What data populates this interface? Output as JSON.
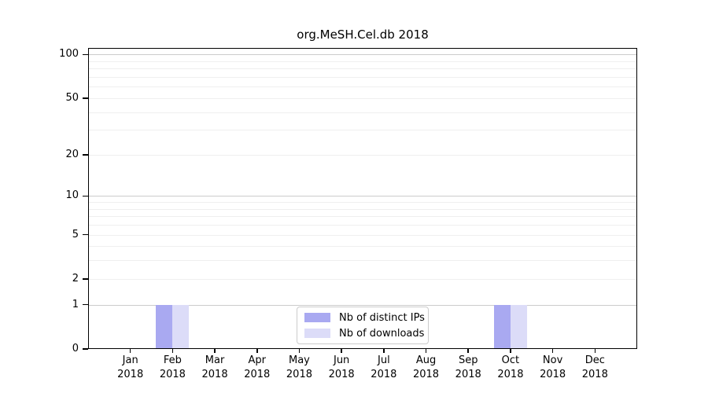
{
  "chart_data": {
    "type": "bar",
    "title": "org.MeSH.Cel.db 2018",
    "categories": [
      "Jan",
      "Feb",
      "Mar",
      "Apr",
      "May",
      "Jun",
      "Jul",
      "Aug",
      "Sep",
      "Oct",
      "Nov",
      "Dec"
    ],
    "x_tick_year": "2018",
    "series": [
      {
        "name": "Nb of distinct IPs",
        "color": "#a9a9f1",
        "values": [
          0,
          1,
          0,
          0,
          0,
          0,
          0,
          0,
          0,
          1,
          0,
          0
        ]
      },
      {
        "name": "Nb of downloads",
        "color": "#dcdcf8",
        "values": [
          0,
          1,
          0,
          0,
          0,
          0,
          0,
          0,
          0,
          1,
          0,
          0
        ]
      }
    ],
    "y_axis": {
      "scale": "log1p",
      "ylim": [
        0,
        100
      ],
      "tick_values": [
        0,
        1,
        2,
        5,
        10,
        20,
        50,
        100
      ],
      "major_gridline_values": [
        1,
        10,
        100
      ],
      "minor_gridline_values": [
        2,
        3,
        4,
        5,
        6,
        7,
        8,
        9,
        20,
        30,
        40,
        50,
        60,
        70,
        80,
        90
      ]
    },
    "legend": {
      "position": "lower-center"
    },
    "grid": true,
    "colors": {
      "axis": "#000000",
      "major_grid": "#cccccc",
      "minor_grid": "#efefef",
      "background": "#ffffff"
    }
  }
}
